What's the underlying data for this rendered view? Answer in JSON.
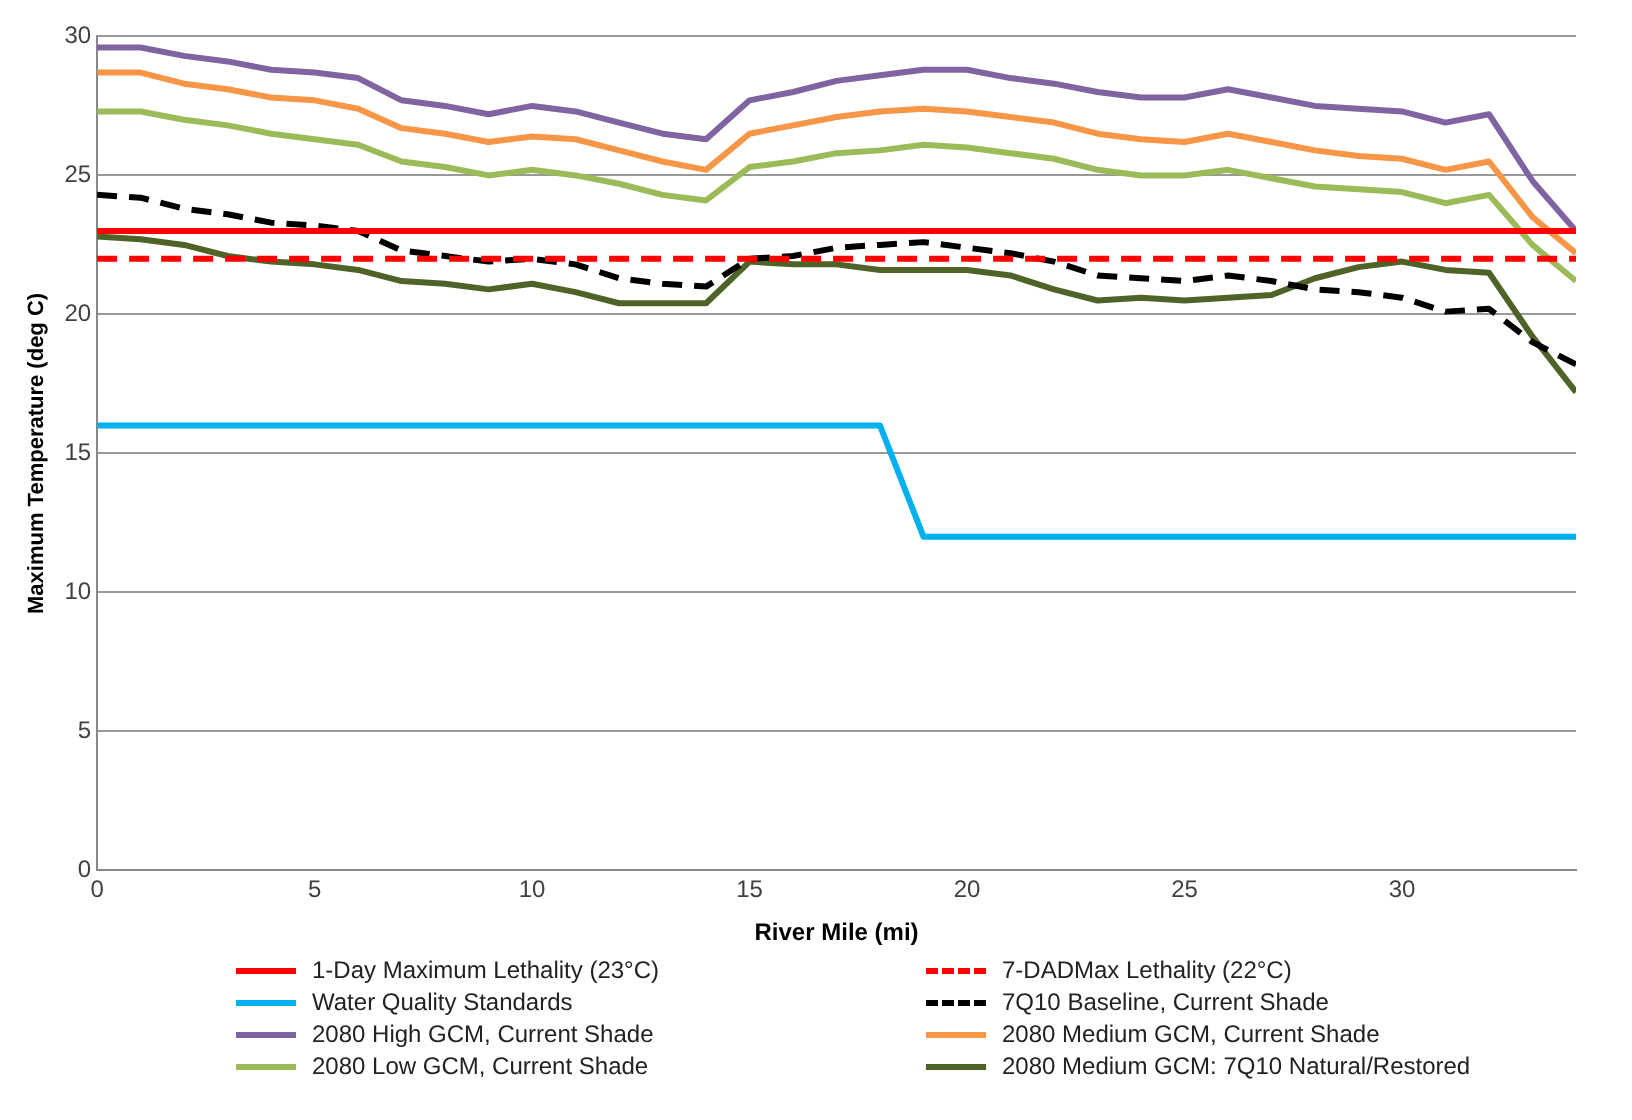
{
  "chart_data": {
    "type": "line",
    "xlabel": "River Mile (mi)",
    "ylabel": "Maximum Temperature (deg C)",
    "xlim": [
      0,
      34
    ],
    "xticks": [
      0,
      5,
      10,
      15,
      20,
      25,
      30
    ],
    "ylim": [
      0,
      30
    ],
    "yticks": [
      0,
      5,
      10,
      15,
      20,
      25,
      30
    ],
    "grid": "y",
    "legend": "bottom",
    "marker": "none",
    "x": [
      0,
      1,
      2,
      3,
      4,
      5,
      6,
      7,
      8,
      9,
      10,
      11,
      12,
      13,
      14,
      15,
      16,
      17,
      18,
      19,
      20,
      21,
      22,
      23,
      24,
      25,
      26,
      27,
      28,
      29,
      30,
      31,
      32,
      33,
      34
    ],
    "series": [
      {
        "name": "1-Day Maximum Lethality (23°C)",
        "color": "#ff0000",
        "x": [
          0,
          34
        ],
        "values": [
          23,
          23
        ],
        "line_style": "solid"
      },
      {
        "name": "7-DADMax Lethality (22°C)",
        "color": "#ff0000",
        "x": [
          0,
          34
        ],
        "values": [
          22,
          22
        ],
        "line_style": "dashed"
      },
      {
        "name": "Water Quality Standards",
        "color": "#00b0f0",
        "x": [
          0,
          18,
          19,
          34
        ],
        "values": [
          16,
          16,
          12,
          12
        ],
        "line_style": "solid"
      },
      {
        "name": "7Q10 Baseline, Current Shade",
        "color": "#000000",
        "line_style": "dashed",
        "values": [
          24.3,
          24.2,
          23.8,
          23.6,
          23.3,
          23.2,
          23.0,
          22.3,
          22.1,
          21.9,
          22.0,
          21.8,
          21.3,
          21.1,
          21.0,
          22.0,
          22.1,
          22.4,
          22.5,
          22.6,
          22.4,
          22.2,
          21.9,
          21.4,
          21.3,
          21.2,
          21.4,
          21.2,
          20.9,
          20.8,
          20.6,
          20.1,
          20.2,
          19.0,
          18.2
        ]
      },
      {
        "name": "2080 High GCM, Current Shade",
        "color": "#8064a2",
        "line_style": "solid",
        "values": [
          29.6,
          29.6,
          29.3,
          29.1,
          28.8,
          28.7,
          28.5,
          27.7,
          27.5,
          27.2,
          27.5,
          27.3,
          26.9,
          26.5,
          26.3,
          27.7,
          28.0,
          28.4,
          28.6,
          28.8,
          28.8,
          28.5,
          28.3,
          28.0,
          27.8,
          27.8,
          28.1,
          27.8,
          27.5,
          27.4,
          27.3,
          26.9,
          27.2,
          24.8,
          23.0
        ]
      },
      {
        "name": "2080 Medium GCM, Current Shade",
        "color": "#f79646",
        "line_style": "solid",
        "values": [
          28.7,
          28.7,
          28.3,
          28.1,
          27.8,
          27.7,
          27.4,
          26.7,
          26.5,
          26.2,
          26.4,
          26.3,
          25.9,
          25.5,
          25.2,
          26.5,
          26.8,
          27.1,
          27.3,
          27.4,
          27.3,
          27.1,
          26.9,
          26.5,
          26.3,
          26.2,
          26.5,
          26.2,
          25.9,
          25.7,
          25.6,
          25.2,
          25.5,
          23.5,
          22.2
        ]
      },
      {
        "name": "2080 Low GCM,  Current Shade",
        "color": "#9bbb59",
        "line_style": "solid",
        "values": [
          27.3,
          27.3,
          27.0,
          26.8,
          26.5,
          26.3,
          26.1,
          25.5,
          25.3,
          25.0,
          25.2,
          25.0,
          24.7,
          24.3,
          24.1,
          25.3,
          25.5,
          25.8,
          25.9,
          26.1,
          26.0,
          25.8,
          25.6,
          25.2,
          25.0,
          25.0,
          25.2,
          24.9,
          24.6,
          24.5,
          24.4,
          24.0,
          24.3,
          22.5,
          21.2
        ]
      },
      {
        "name": "2080 Medium GCM: 7Q10 Natural/Restored",
        "color": "#4f6228",
        "line_style": "solid",
        "values": [
          22.8,
          22.7,
          22.5,
          22.1,
          21.9,
          21.8,
          21.6,
          21.2,
          21.1,
          20.9,
          21.1,
          20.8,
          20.4,
          20.4,
          20.4,
          21.9,
          21.8,
          21.8,
          21.6,
          21.6,
          21.6,
          21.4,
          20.9,
          20.5,
          20.6,
          20.5,
          20.6,
          20.7,
          21.3,
          21.7,
          21.9,
          21.6,
          21.5,
          19.2,
          17.2
        ]
      }
    ]
  }
}
